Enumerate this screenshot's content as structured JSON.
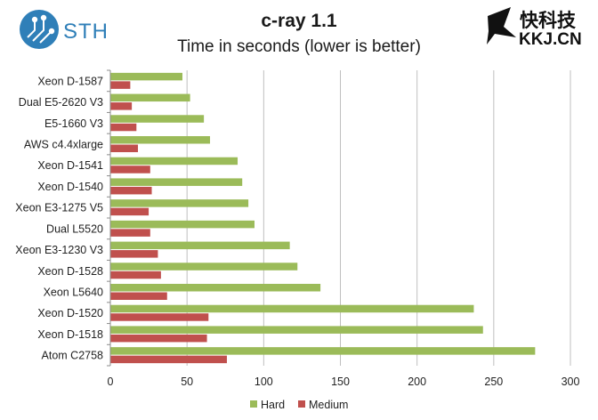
{
  "logos": {
    "left_text": "STH",
    "right_text_cn": "快科技",
    "right_text_domain": "KKJ.CN"
  },
  "colors": {
    "hard": "#9bbb59",
    "medium": "#c0504d",
    "grid": "#bfbfbf",
    "axis": "#8c8c8c",
    "sth_blue": "#2f7fb8"
  },
  "chart_data": {
    "type": "bar",
    "orientation": "horizontal",
    "title": "c-ray 1.1",
    "subtitle": "Time in seconds (lower is better)",
    "categories": [
      "Xeon D-1587",
      "Dual E5-2620 V3",
      "E5-1660 V3",
      "AWS c4.4xlarge",
      "Xeon D-1541",
      "Xeon D-1540",
      "Xeon E3-1275 V5",
      "Dual L5520",
      "Xeon E3-1230 V3",
      "Xeon D-1528",
      "Xeon L5640",
      "Xeon D-1520",
      "Xeon D-1518",
      "Atom C2758"
    ],
    "series": [
      {
        "name": "Hard",
        "color": "#9bbb59",
        "values": [
          47,
          52,
          61,
          65,
          83,
          86,
          90,
          94,
          117,
          122,
          137,
          237,
          243,
          277
        ]
      },
      {
        "name": "Medium",
        "color": "#c0504d",
        "values": [
          13,
          14,
          17,
          18,
          26,
          27,
          25,
          26,
          31,
          33,
          37,
          64,
          63,
          76
        ]
      }
    ],
    "xlim": [
      0,
      300
    ],
    "xticks": [
      0,
      50,
      100,
      150,
      200,
      250,
      300
    ],
    "grid": true,
    "legend_position": "bottom"
  }
}
